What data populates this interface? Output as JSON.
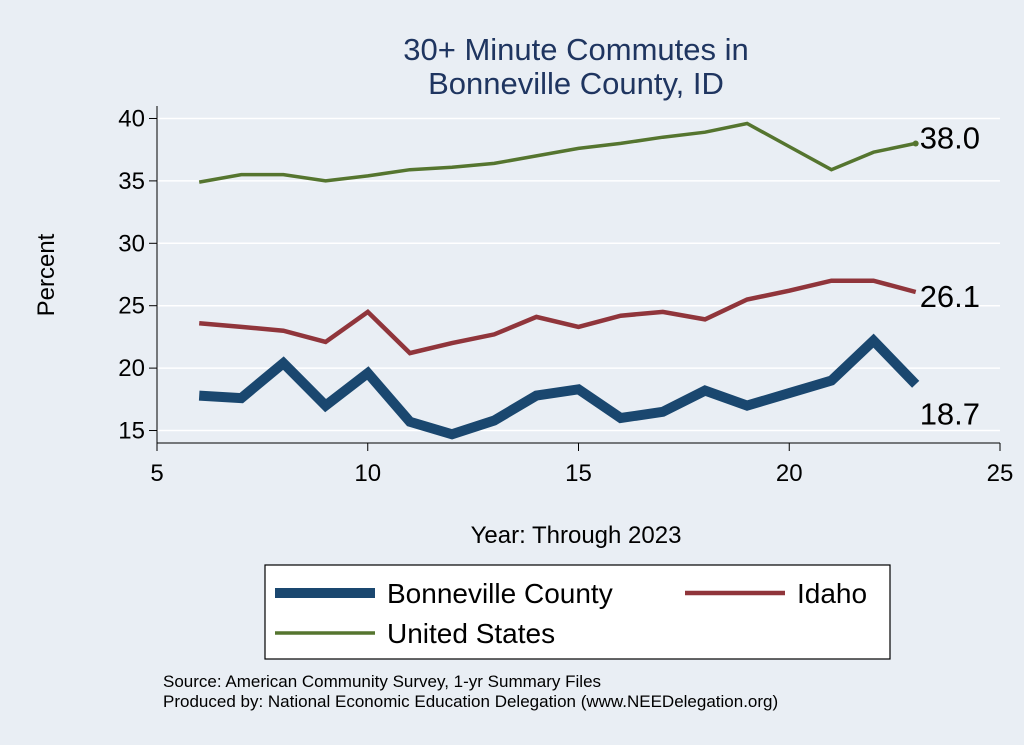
{
  "chart_data": {
    "type": "line",
    "title": [
      "30+ Minute Commutes in",
      "Bonneville County, ID"
    ],
    "xlabel": "Year: Through 2023",
    "ylabel": "Percent",
    "xlim": [
      5,
      25
    ],
    "ylim": [
      14,
      41
    ],
    "xticks": [
      5,
      10,
      15,
      20,
      25
    ],
    "yticks": [
      15,
      20,
      25,
      30,
      35,
      40
    ],
    "grid": true,
    "legend_position": "bottom",
    "x": [
      6,
      7,
      8,
      9,
      10,
      11,
      12,
      13,
      14,
      15,
      16,
      17,
      18,
      19,
      20,
      21,
      22,
      23
    ],
    "series": [
      {
        "name": "Bonneville County",
        "color": "#1a476f",
        "values": [
          17.8,
          17.6,
          20.4,
          17.0,
          19.6,
          15.7,
          14.7,
          15.8,
          17.8,
          18.3,
          16.0,
          16.5,
          18.2,
          17.0,
          18.0,
          19.0,
          22.2,
          18.7
        ],
        "end_label": "18.7"
      },
      {
        "name": "Idaho",
        "color": "#90353b",
        "values": [
          23.6,
          23.3,
          23.0,
          22.1,
          24.5,
          21.2,
          22.0,
          22.7,
          24.1,
          23.3,
          24.2,
          24.5,
          23.9,
          25.5,
          26.2,
          27.0,
          27.0,
          26.1
        ],
        "end_label": "26.1"
      },
      {
        "name": "United States",
        "color": "#55752f",
        "values": [
          34.9,
          35.5,
          35.5,
          35.0,
          35.4,
          35.9,
          36.1,
          36.4,
          37.0,
          37.6,
          38.0,
          38.5,
          38.9,
          39.6,
          null,
          35.9,
          37.3,
          38.0
        ],
        "end_label": "38.0"
      }
    ],
    "source_note": "Source: American Community Survey, 1-yr Summary Files",
    "producer_note": "Produced by: National Economic Education Delegation (www.NEEDelegation.org)"
  }
}
